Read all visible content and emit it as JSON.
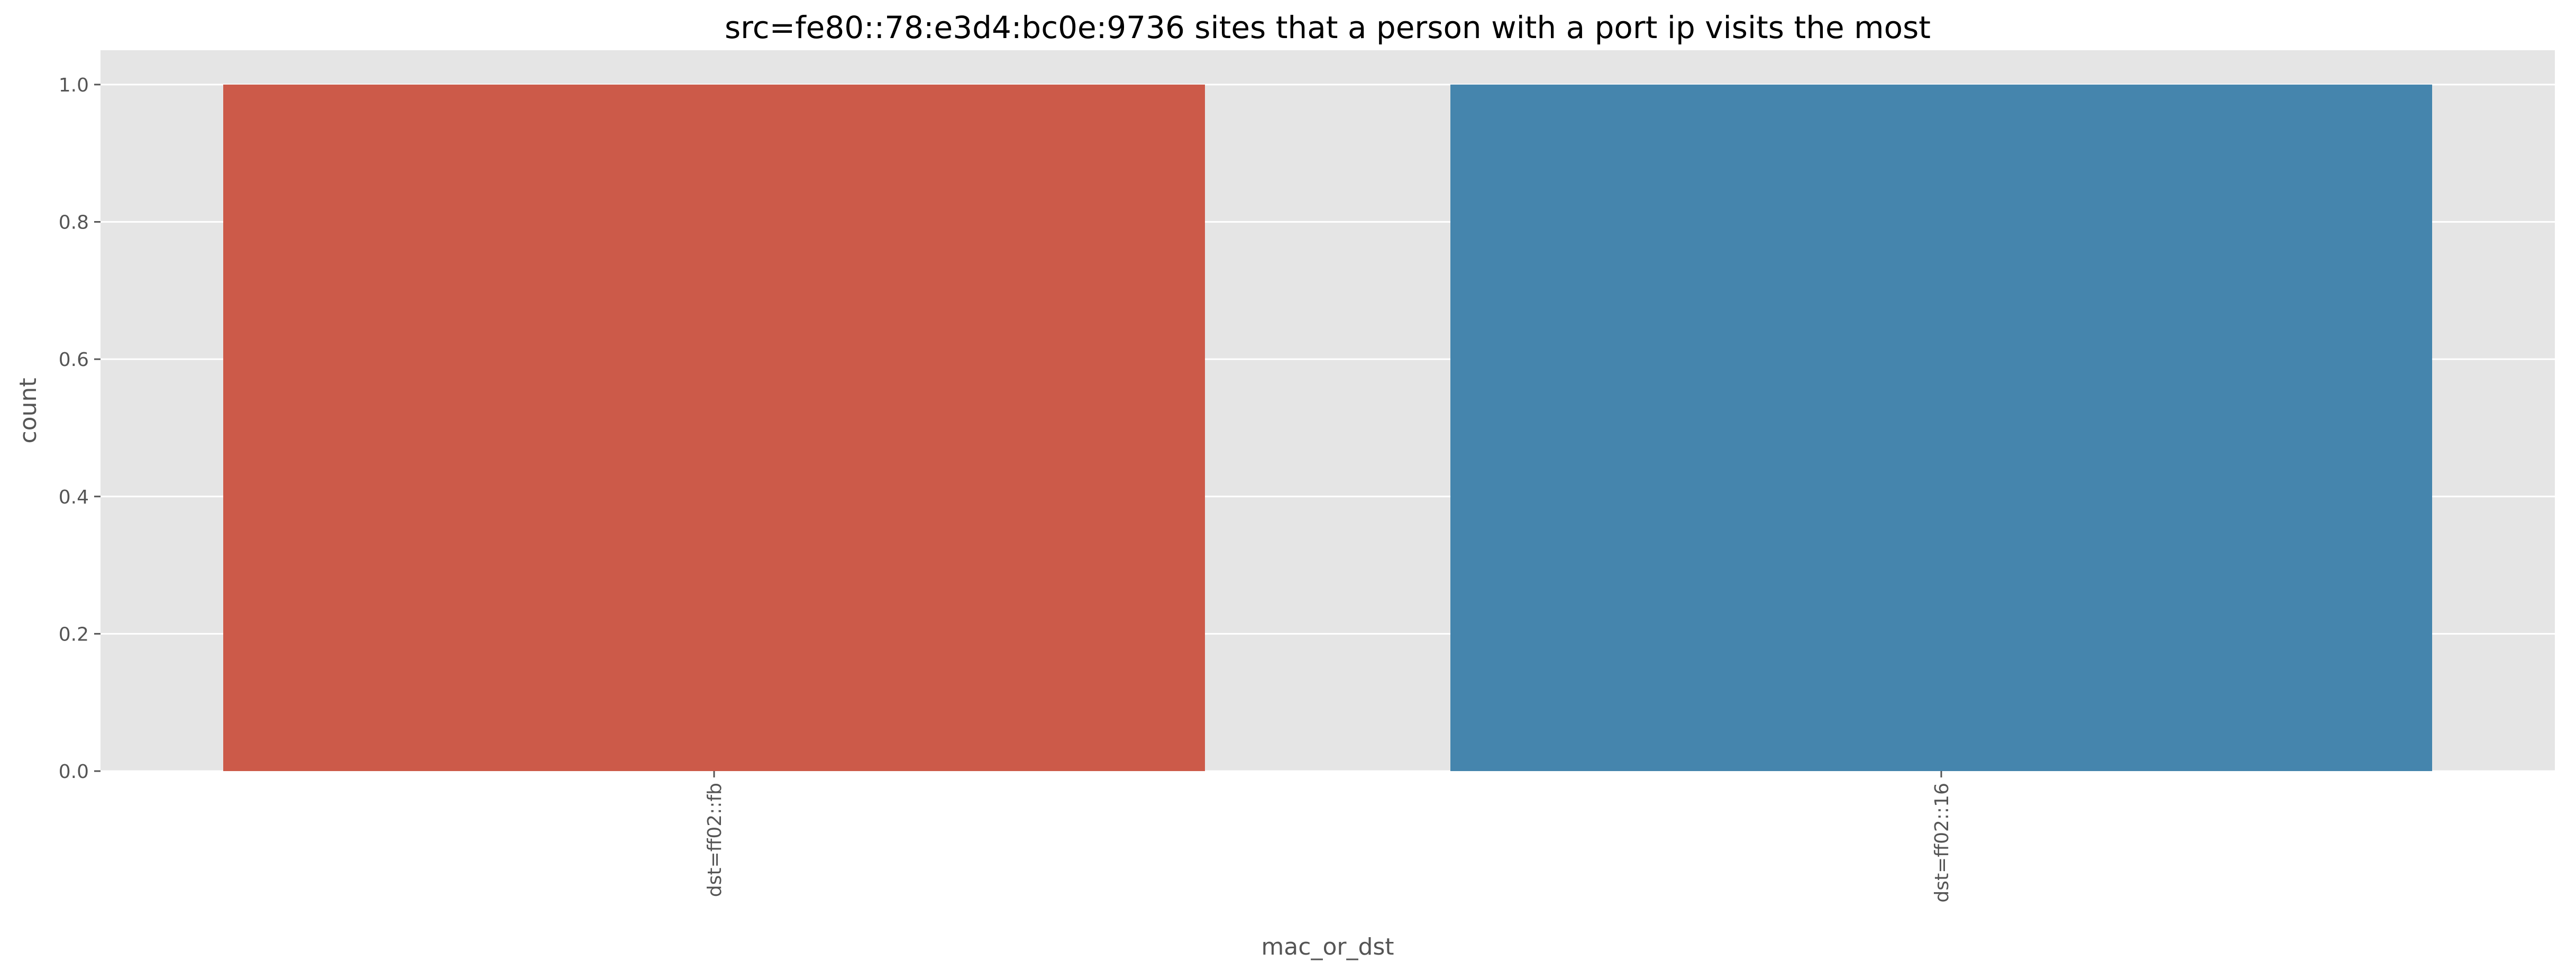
{
  "chart_data": {
    "type": "bar",
    "title": "src=fe80::78:e3d4:bc0e:9736 sites that a person with a port ip visits the most",
    "xlabel": "mac_or_dst",
    "ylabel": "count",
    "categories": [
      "dst=ff02::fb",
      "dst=ff02::16"
    ],
    "values": [
      1.0,
      1.0
    ],
    "colors": [
      "#cc5a49",
      "#4585ad"
    ],
    "ylim": [
      0,
      1.05
    ],
    "yticks": [
      "0.0",
      "0.2",
      "0.4",
      "0.6",
      "0.8",
      "1.0"
    ],
    "ytick_values": [
      0,
      0.2,
      0.4,
      0.6,
      0.8,
      1.0
    ],
    "grid": true,
    "background": "#e5e5e5",
    "grid_color": "#ffffff"
  }
}
